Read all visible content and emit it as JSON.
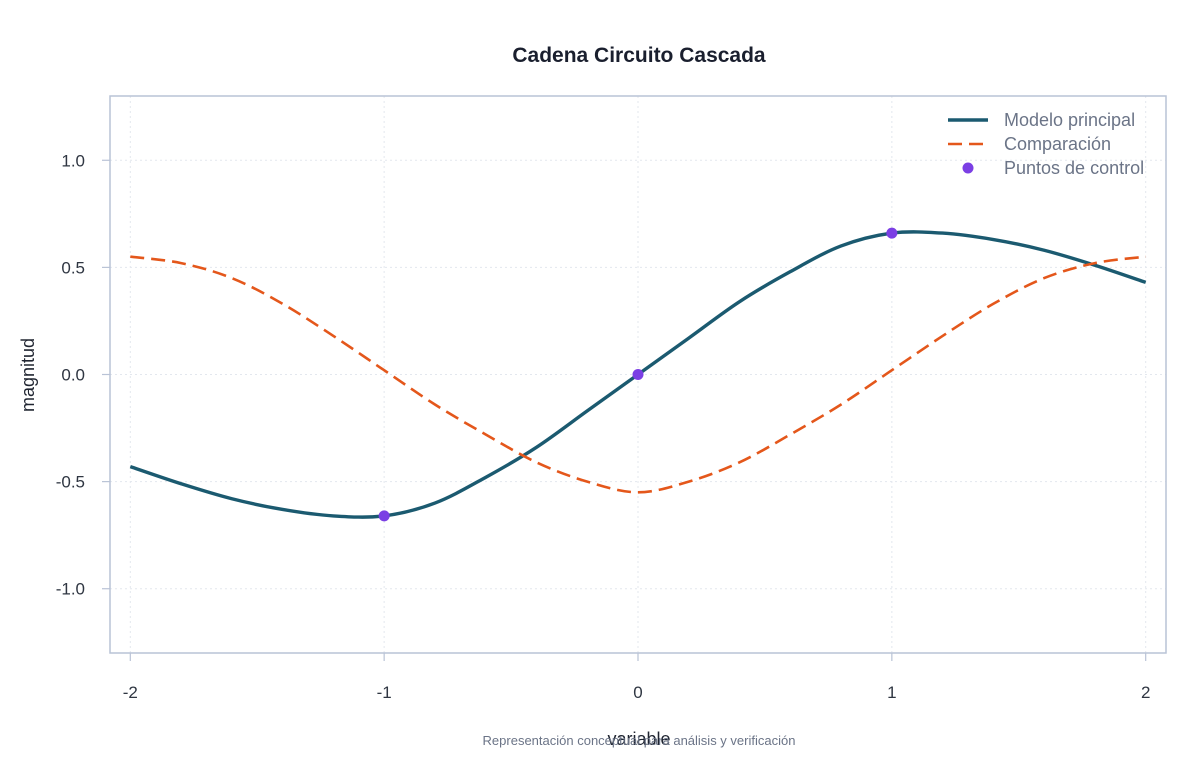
{
  "chart_data": {
    "type": "line",
    "title": "Cadena Circuito Cascada",
    "xlabel": "variable",
    "ylabel": "magnitud",
    "caption": "Representación conceptual para análisis y verificación",
    "xlim": [
      -2.08,
      2.08
    ],
    "ylim": [
      -1.3,
      1.3
    ],
    "x_ticks": [
      -2,
      -1,
      0,
      1,
      2
    ],
    "x_tick_labels": [
      "-2",
      "-1",
      "0",
      "1",
      "2"
    ],
    "y_ticks": [
      -1.0,
      -0.5,
      0.0,
      0.5,
      1.0
    ],
    "y_tick_labels": [
      "-1.0",
      "-0.5",
      "0.0",
      "0.5",
      "1.0"
    ],
    "grid": true,
    "legend_position": "top-right",
    "series": [
      {
        "name": "Modelo principal",
        "style": "solid",
        "color": "#1b5a70",
        "x": [
          -2.0,
          -1.8,
          -1.6,
          -1.4,
          -1.2,
          -1.0,
          -0.8,
          -0.6,
          -0.4,
          -0.2,
          0.0,
          0.2,
          0.4,
          0.6,
          0.8,
          1.0,
          1.2,
          1.4,
          1.6,
          1.8,
          2.0
        ],
        "y": [
          -0.43,
          -0.51,
          -0.58,
          -0.63,
          -0.66,
          -0.66,
          -0.6,
          -0.48,
          -0.34,
          -0.17,
          0.0,
          0.17,
          0.34,
          0.48,
          0.6,
          0.66,
          0.66,
          0.63,
          0.58,
          0.51,
          0.43
        ]
      },
      {
        "name": "Comparación",
        "style": "dashed",
        "color": "#e4571b",
        "x": [
          -2.0,
          -1.8,
          -1.6,
          -1.4,
          -1.2,
          -1.0,
          -0.8,
          -0.6,
          -0.4,
          -0.2,
          0.0,
          0.2,
          0.4,
          0.6,
          0.8,
          1.0,
          1.2,
          1.4,
          1.6,
          1.8,
          2.0
        ],
        "y": [
          0.55,
          0.52,
          0.45,
          0.33,
          0.18,
          0.02,
          -0.14,
          -0.28,
          -0.41,
          -0.5,
          -0.55,
          -0.5,
          -0.41,
          -0.28,
          -0.14,
          0.02,
          0.18,
          0.33,
          0.45,
          0.52,
          0.55
        ]
      },
      {
        "name": "Puntos de control",
        "style": "points",
        "color": "#7b3fe4",
        "x": [
          -1,
          0,
          1
        ],
        "y": [
          -0.66,
          0.0,
          0.66
        ]
      }
    ]
  }
}
